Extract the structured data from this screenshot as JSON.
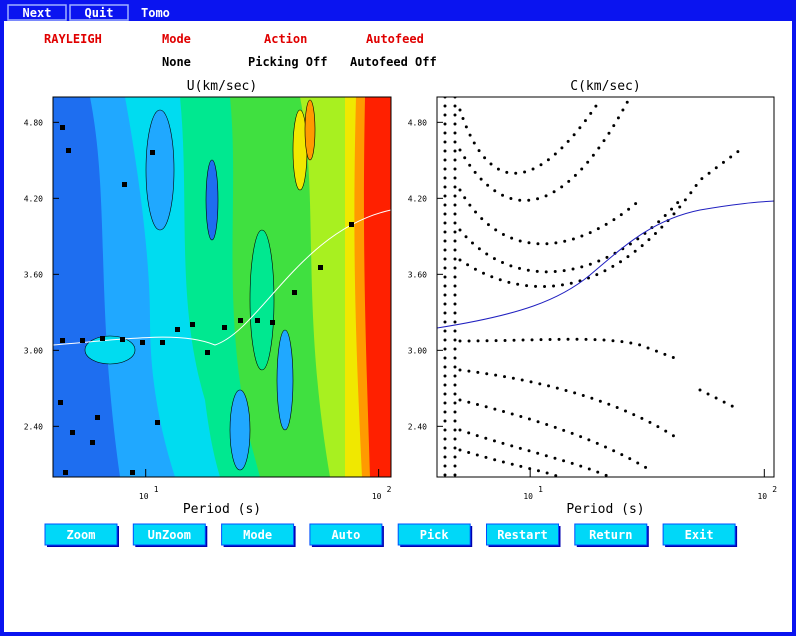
{
  "menu": {
    "items": [
      "Next",
      "Quit"
    ],
    "label": "Tomo"
  },
  "status": {
    "headers": [
      "RAYLEIGH",
      "Mode",
      "Action",
      "Autofeed"
    ],
    "values": [
      "None",
      "Picking Off",
      "Autofeed Off"
    ]
  },
  "plots": [
    {
      "title": "U(km/sec)",
      "xlabel": "Period (s)",
      "xlim": [
        4,
        113
      ],
      "ylim": [
        2.0,
        5.0
      ],
      "log_x": true,
      "yticks": [
        {
          "value": 4.8,
          "label": "4.80"
        },
        {
          "value": 4.2,
          "label": "4.20"
        },
        {
          "value": 3.6,
          "label": "3.60"
        },
        {
          "value": 3.0,
          "label": "3.00"
        },
        {
          "value": 2.4,
          "label": "2.40"
        }
      ],
      "xticks": [
        {
          "value": 10,
          "label": "10",
          "exponent": "1"
        },
        {
          "value": 100,
          "label": "10",
          "exponent": "2"
        }
      ]
    },
    {
      "title": "C(km/sec)",
      "xlabel": "Period (s)",
      "xlim": [
        4,
        110
      ],
      "ylim": [
        2.0,
        5.0
      ],
      "log_x": true,
      "yticks": [
        {
          "value": 4.8,
          "label": "4.80"
        },
        {
          "value": 4.2,
          "label": "4.20"
        },
        {
          "value": 3.6,
          "label": "3.60"
        },
        {
          "value": 3.0,
          "label": "3.00"
        },
        {
          "value": 2.4,
          "label": "2.40"
        }
      ],
      "xticks": [
        {
          "value": 10,
          "label": "10",
          "exponent": "1"
        },
        {
          "value": 100,
          "label": "10",
          "exponent": "2"
        }
      ]
    }
  ],
  "buttons": [
    "Zoom",
    "UnZoom",
    "Mode",
    "Auto",
    "Pick",
    "Restart",
    "Return",
    "Exit"
  ]
}
